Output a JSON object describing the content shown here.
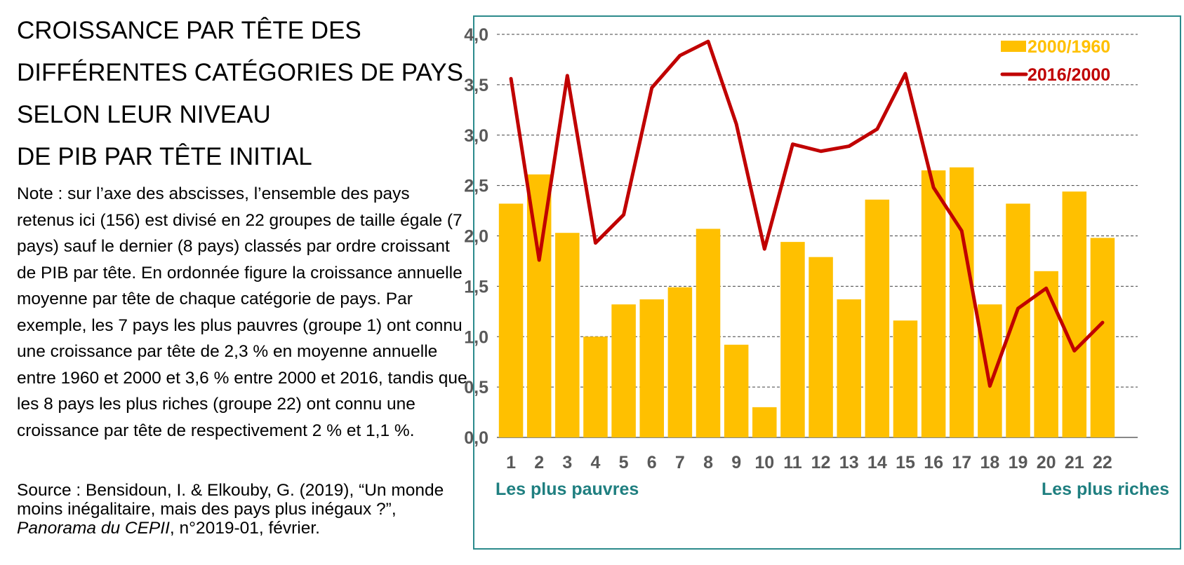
{
  "title_lines": [
    "CROISSANCE PAR TÊTE DES",
    "DIFFÉRENTES CATÉGORIES DE PAYS",
    "SELON LEUR NIVEAU",
    "DE PIB PAR TÊTE INITIAL"
  ],
  "note": "Note : sur l’axe des abscisses, l’ensemble des pays retenus ici (156) est divisé en 22 groupes de taille égale (7 pays) sauf le dernier (8 pays) classés par ordre croissant de PIB par tête. En ordonnée figure la croissance annuelle moyenne par tête de chaque catégorie de pays. Par exemple, les 7 pays les plus pauvres (groupe 1) ont connu une croissance par tête de 2,3 % en moyenne annuelle entre 1960 et 2000 et 3,6 % entre 2000 et 2016, tandis que les 8 pays les plus riches (groupe 22) ont connu une croissance par tête de respectivement 2 % et 1,1 %.",
  "source": {
    "prefix": "Source : Bensidoun, I. & Elkouby, G. (2019), “Un monde moins inégalitaire, mais des pays plus inégaux ?”, ",
    "italic": "Panorama du CEPII",
    "suffix": ", n°2019-01, février."
  },
  "colors": {
    "bar": "#FFC000",
    "line": "#C00000",
    "frame": "#2b8a8c",
    "end_labels": "#1f7f80",
    "ticks": "#595959"
  },
  "chart_data": {
    "type": "bar",
    "categories": [
      "1",
      "2",
      "3",
      "4",
      "5",
      "6",
      "7",
      "8",
      "9",
      "10",
      "11",
      "12",
      "13",
      "14",
      "15",
      "16",
      "17",
      "18",
      "19",
      "20",
      "21",
      "22"
    ],
    "series": [
      {
        "name": "2000/1960",
        "type": "bar",
        "values": [
          2.32,
          2.61,
          2.03,
          1.0,
          1.32,
          1.37,
          1.49,
          2.07,
          0.92,
          0.3,
          1.94,
          1.79,
          1.37,
          2.36,
          1.16,
          2.65,
          2.68,
          1.32,
          2.32,
          1.65,
          2.44,
          1.98
        ]
      },
      {
        "name": "2016/2000",
        "type": "line",
        "values": [
          3.56,
          1.76,
          3.59,
          1.93,
          2.21,
          3.47,
          3.79,
          3.93,
          3.11,
          1.87,
          2.91,
          2.84,
          2.89,
          3.06,
          3.61,
          2.48,
          2.05,
          0.51,
          1.28,
          1.48,
          0.86,
          1.14
        ]
      }
    ],
    "yticks": [
      "0,0",
      "0,5",
      "1,0",
      "1,5",
      "2,0",
      "2,5",
      "3,0",
      "3,5",
      "4,0"
    ],
    "ylim": [
      0,
      4
    ],
    "ytick_step": 0.5,
    "grid": true,
    "legend_position": "top-right",
    "left_label": "Les plus pauvres",
    "right_label": "Les plus riches"
  }
}
